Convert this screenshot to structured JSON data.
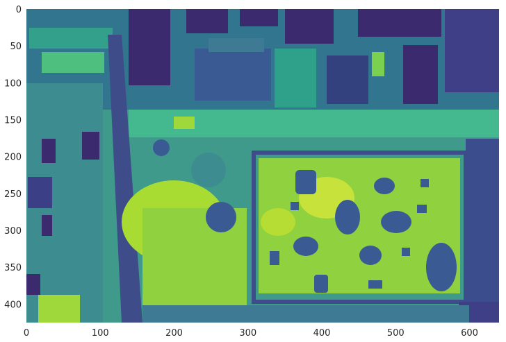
{
  "chart_data": {
    "type": "heatmap",
    "title": "",
    "xlabel": "",
    "ylabel": "",
    "colormap": "viridis",
    "image_width": 640,
    "image_height": 425,
    "xlim": [
      0,
      640
    ],
    "ylim": [
      425,
      0
    ],
    "x_ticks": [
      0,
      100,
      200,
      300,
      400,
      500,
      600
    ],
    "y_ticks": [
      0,
      50,
      100,
      150,
      200,
      250,
      300,
      350,
      400
    ],
    "x_tick_labels": [
      "0",
      "100",
      "200",
      "300",
      "400",
      "500",
      "600"
    ],
    "y_tick_labels": [
      "0",
      "50",
      "100",
      "150",
      "200",
      "250",
      "300",
      "350",
      "400"
    ],
    "colors": {
      "background": "#44c8a0",
      "low": "#3b2a6e",
      "mid_low": "#3a5a93",
      "mid": "#2a8c8c",
      "high": "#8fd13f",
      "peak": "#c7e23a"
    }
  }
}
